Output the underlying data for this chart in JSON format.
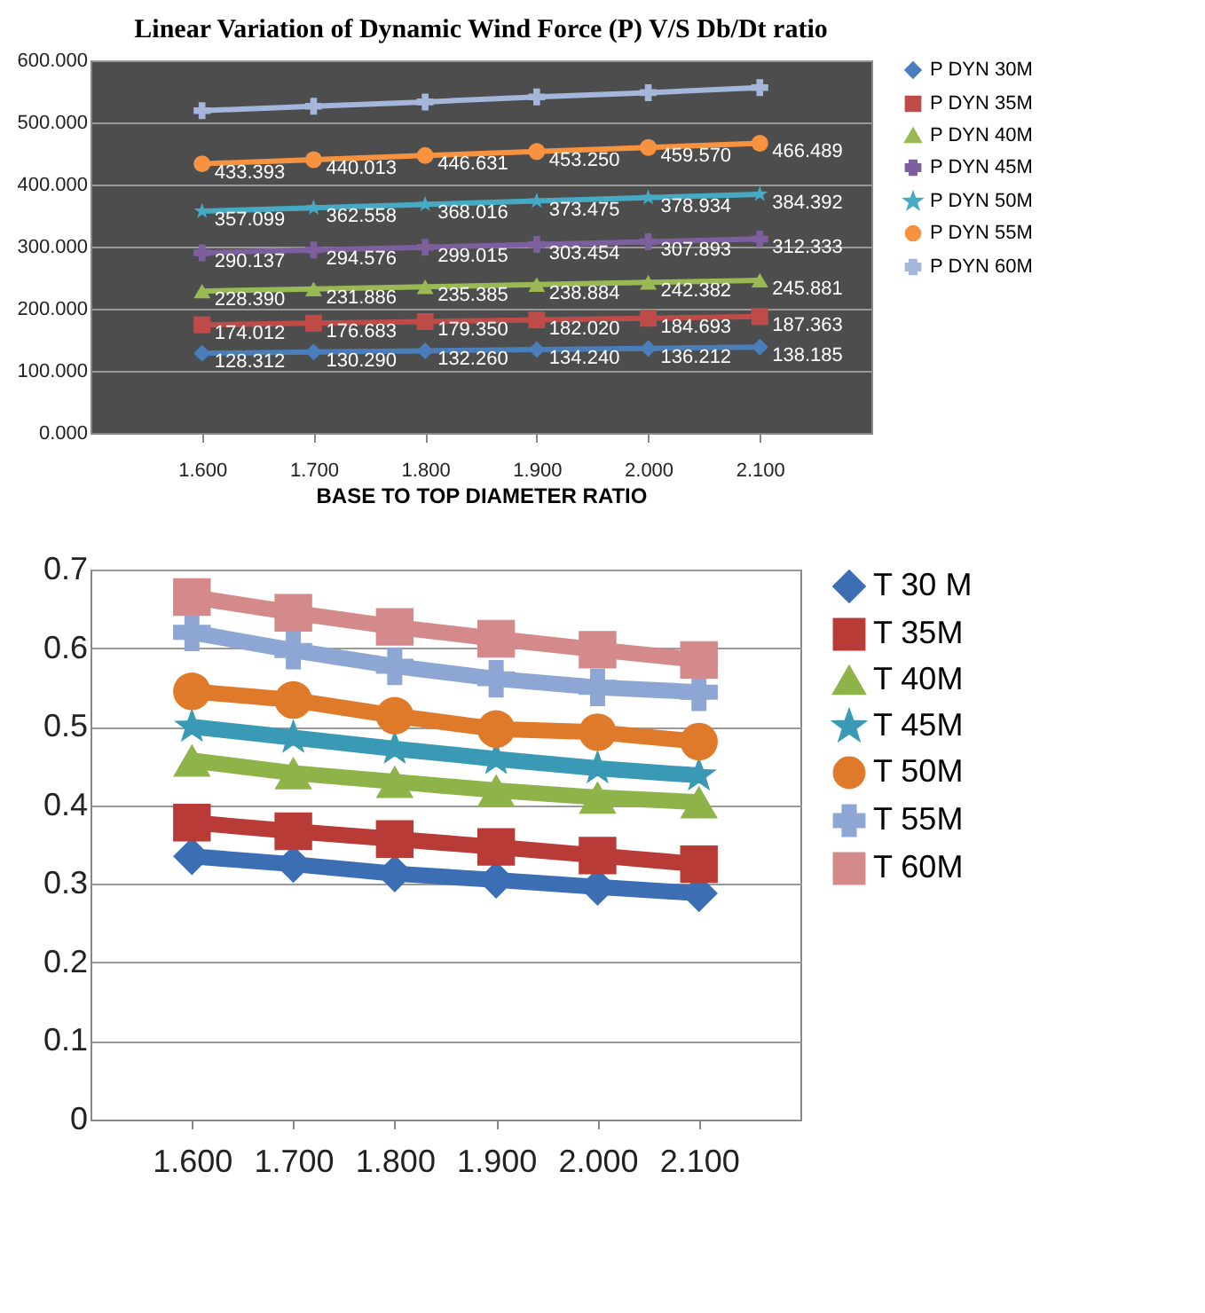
{
  "chart_data": [
    {
      "type": "line",
      "title": "Linear Variation of Dynamic  Wind Force (P) V/S Db/Dt ratio",
      "xlabel": "BASE TO TOP DIAMETER RATIO",
      "categories": [
        "1.600",
        "1.700",
        "1.800",
        "1.900",
        "2.000",
        "2.100"
      ],
      "ylim": [
        0,
        600
      ],
      "yticks": [
        {
          "value": 0,
          "label": "0.000"
        },
        {
          "value": 100,
          "label": "100.000"
        },
        {
          "value": 200,
          "label": "200.000"
        },
        {
          "value": 300,
          "label": "300.000"
        },
        {
          "value": 400,
          "label": "400.000"
        },
        {
          "value": 500,
          "label": "500.000"
        },
        {
          "value": 600,
          "label": "600.000"
        }
      ],
      "grid": "y",
      "legend": "right",
      "series": [
        {
          "name": "P DYN 30M",
          "color": "#4a7ebb",
          "marker": "diamond",
          "values": [
            128.312,
            130.29,
            132.26,
            134.24,
            136.212,
            138.185
          ],
          "value_labels": [
            "128.312",
            "130.290",
            "132.260",
            "134.240",
            "136.212",
            "138.185"
          ]
        },
        {
          "name": "P DYN 35M",
          "color": "#be4b48",
          "marker": "square",
          "values": [
            174.012,
            176.683,
            179.35,
            182.02,
            184.693,
            187.363
          ],
          "value_labels": [
            "174.012",
            "176.683",
            "179.350",
            "182.020",
            "184.693",
            "187.363"
          ]
        },
        {
          "name": "P DYN 40M",
          "color": "#98b954",
          "marker": "triangle",
          "values": [
            228.39,
            231.886,
            235.385,
            238.884,
            242.382,
            245.881
          ],
          "value_labels": [
            "228.390",
            "231.886",
            "235.385",
            "238.884",
            "242.382",
            "245.881"
          ]
        },
        {
          "name": "P DYN 45M",
          "color": "#7d5fa0",
          "marker": "cross",
          "values": [
            290.137,
            294.576,
            299.015,
            303.454,
            307.893,
            312.333
          ],
          "value_labels": [
            "290.137",
            "294.576",
            "299.015",
            "303.454",
            "307.893",
            "312.333"
          ]
        },
        {
          "name": "P DYN 50M",
          "color": "#46aac5",
          "marker": "star",
          "values": [
            357.099,
            362.558,
            368.016,
            373.475,
            378.934,
            384.392
          ],
          "value_labels": [
            "357.099",
            "362.558",
            "368.016",
            "373.475",
            "378.934",
            "384.392"
          ]
        },
        {
          "name": "P DYN 55M",
          "color": "#f69240",
          "marker": "circle",
          "values": [
            433.393,
            440.013,
            446.631,
            453.25,
            459.57,
            466.489
          ],
          "value_labels": [
            "433.393",
            "440.013",
            "446.631",
            "453.250",
            "459.570",
            "466.489"
          ]
        },
        {
          "name": "P DYN 60M",
          "color": "#a5b6db",
          "marker": "cross",
          "values": [
            519,
            526,
            533,
            541,
            548,
            556
          ]
        }
      ]
    },
    {
      "type": "line",
      "categories": [
        "1.600",
        "1.700",
        "1.800",
        "1.900",
        "2.000",
        "2.100"
      ],
      "ylim": [
        0,
        0.7
      ],
      "yticks": [
        0,
        0.1,
        0.2,
        0.3,
        0.4,
        0.5,
        0.6,
        0.7
      ],
      "grid": "y",
      "legend": "right",
      "series": [
        {
          "name": "T 30 M",
          "color": "#3c6eb4",
          "marker": "diamond",
          "values": [
            0.335,
            0.325,
            0.313,
            0.305,
            0.296,
            0.288
          ]
        },
        {
          "name": "T 35M",
          "color": "#b83b38",
          "marker": "square",
          "values": [
            0.378,
            0.367,
            0.357,
            0.347,
            0.336,
            0.325
          ]
        },
        {
          "name": "T 40M",
          "color": "#8db349",
          "marker": "triangle",
          "values": [
            0.457,
            0.441,
            0.43,
            0.419,
            0.41,
            0.404
          ]
        },
        {
          "name": "T 45M",
          "color": "#3a99b4",
          "marker": "star",
          "values": [
            0.5,
            0.486,
            0.472,
            0.459,
            0.447,
            0.438
          ]
        },
        {
          "name": "T 50M",
          "color": "#e07a2b",
          "marker": "circle",
          "values": [
            0.545,
            0.534,
            0.514,
            0.497,
            0.493,
            0.481
          ]
        },
        {
          "name": "T 55M",
          "color": "#8ea6d3",
          "marker": "cross",
          "values": [
            0.62,
            0.597,
            0.577,
            0.561,
            0.55,
            0.544
          ]
        },
        {
          "name": "T 60M",
          "color": "#d4898a",
          "marker": "square",
          "values": [
            0.665,
            0.645,
            0.627,
            0.612,
            0.598,
            0.585
          ]
        }
      ]
    }
  ]
}
